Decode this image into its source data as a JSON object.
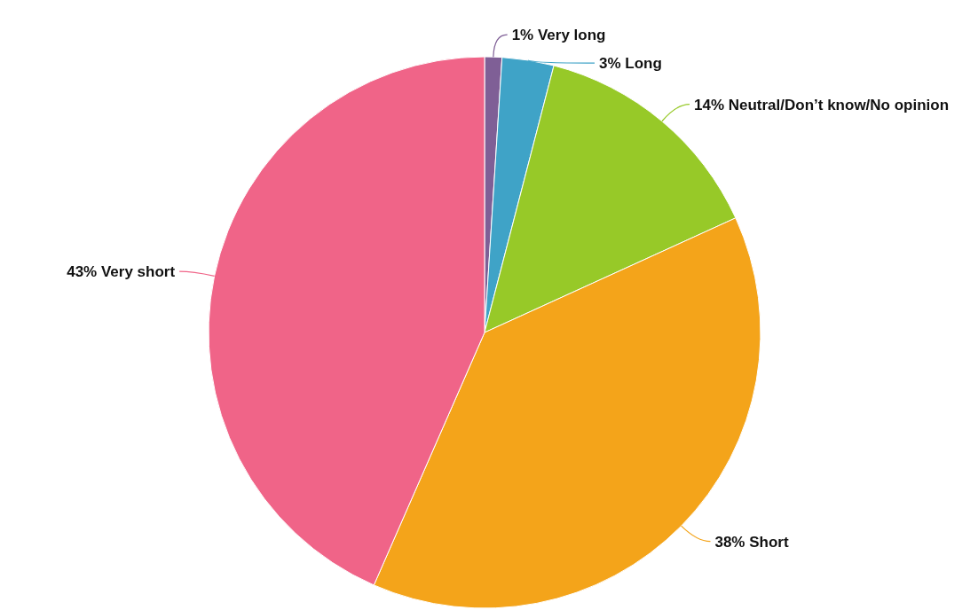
{
  "chart_data": {
    "type": "pie",
    "categories": [
      "Very long",
      "Long",
      "Neutral/Don’t know/No opinion",
      "Short",
      "Very short"
    ],
    "values": [
      1,
      3,
      14,
      38,
      43
    ],
    "value_labels": [
      "1%",
      "3%",
      "14%",
      "38%",
      "43%"
    ],
    "colors": [
      "#7f5f96",
      "#3fa3c7",
      "#97c928",
      "#f4a41a",
      "#f06488"
    ]
  }
}
